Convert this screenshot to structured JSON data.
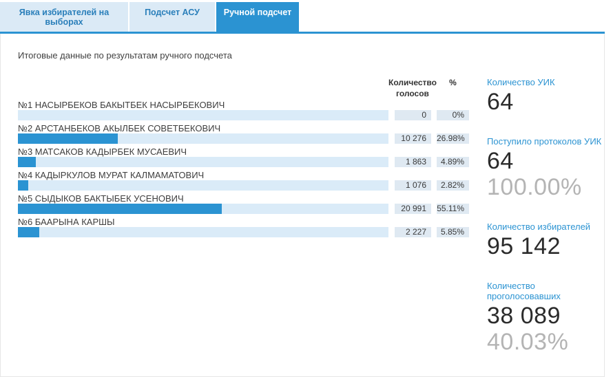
{
  "tabs": [
    {
      "label": "Явка избирателей на выборах",
      "active": false
    },
    {
      "label": "Подсчет АСУ",
      "active": false
    },
    {
      "label": "Ручной подсчет",
      "active": true
    }
  ],
  "title": "Итоговые данные по результатам ручного подсчета",
  "table": {
    "header_votes": "Количество голосов",
    "header_percent": "%",
    "rows": [
      {
        "name": "№1 НАСЫРБЕКОВ БАКЫТБЕК НАСЫРБЕКОВИЧ",
        "votes": "0",
        "percent": "0%",
        "bar_pct": 0
      },
      {
        "name": "№2 АРСТАНБЕКОВ АКЫЛБЕК СОВЕТБЕКОВИЧ",
        "votes": "10 276",
        "percent": "26.98%",
        "bar_pct": 26.98
      },
      {
        "name": "№3 МАТСАКОВ КАДЫРБЕК МУСАЕВИЧ",
        "votes": "1 863",
        "percent": "4.89%",
        "bar_pct": 4.89
      },
      {
        "name": "№4 КАДЫРКУЛОВ МУРАТ КАЛМАМАТОВИЧ",
        "votes": "1 076",
        "percent": "2.82%",
        "bar_pct": 2.82
      },
      {
        "name": "№5 СЫДЫКОВ БАКТЫБЕК УСЕНОВИЧ",
        "votes": "20 991",
        "percent": "55.11%",
        "bar_pct": 55.11
      },
      {
        "name": "№6 БААРЫНА КАРШЫ",
        "votes": "2 227",
        "percent": "5.85%",
        "bar_pct": 5.85
      }
    ]
  },
  "stats": [
    {
      "label": "Количество УИК",
      "value": "64",
      "sub": ""
    },
    {
      "label": "Поступило протоколов УИК",
      "value": "64",
      "sub": "100.00%"
    },
    {
      "label": "Количество избирателей",
      "value": "95 142",
      "sub": ""
    },
    {
      "label": "Количество проголосовавших",
      "value": "38 089",
      "sub": "40.03%"
    }
  ],
  "colors": {
    "accent_blue": "#2b93d2",
    "inactive_tab_bg": "#dbeaf6",
    "inactive_tab_text": "#2a7fba",
    "bar_track": "#daebf8",
    "bar_fill": "#2b93d2",
    "value_cell_bg": "#dfe9f2",
    "stat_value_text": "#2b2b2b",
    "stat_sub_text": "#b4b4b4"
  }
}
